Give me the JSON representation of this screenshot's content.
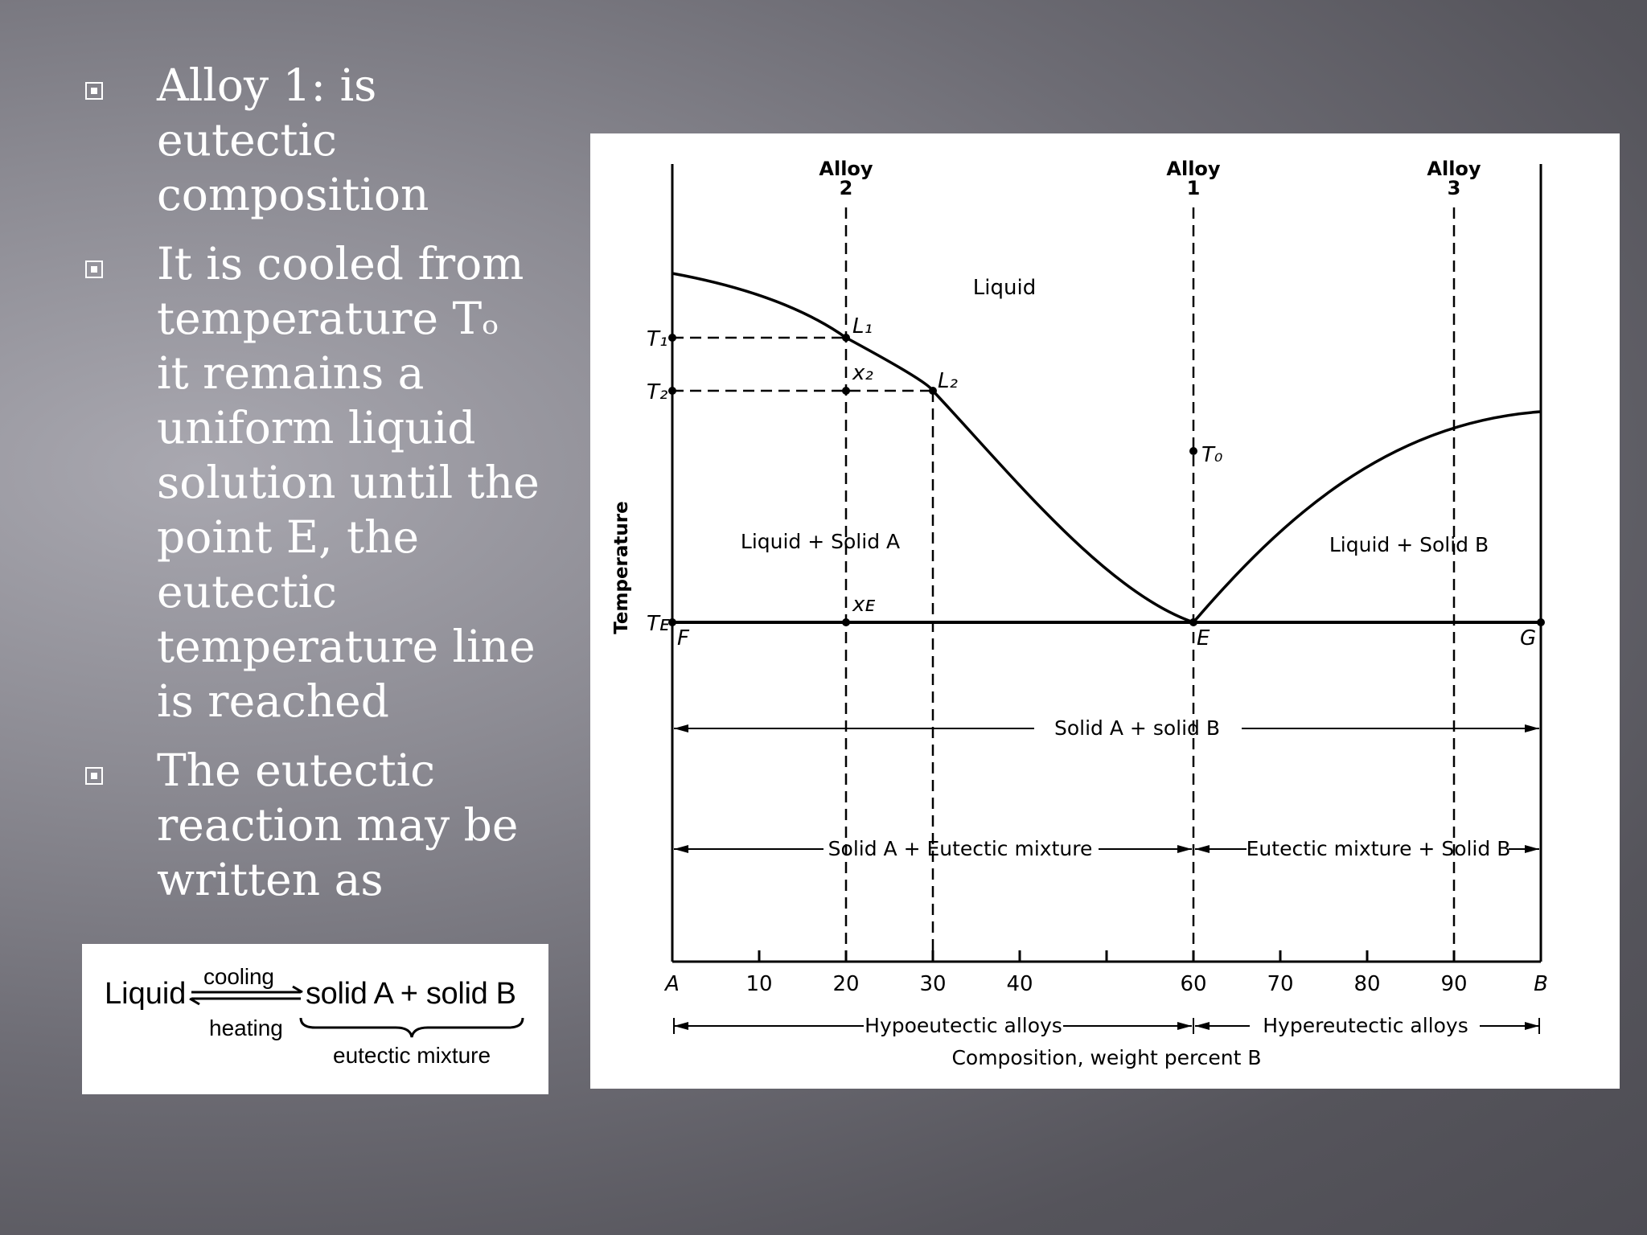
{
  "bullets": [
    {
      "text": "Alloy 1: is\neutectic\ncomposition"
    },
    {
      "text": "It is cooled from\ntemperature Tₒ\nit remains a\nuniform liquid\nsolution until the\npoint E, the\neutectic\ntemperature line\nis reached"
    },
    {
      "text": "The eutectic\nreaction may be\nwritten as"
    }
  ],
  "equation": {
    "left": "Liquid",
    "top_arrow": "cooling",
    "bottom_arrow": "heating",
    "right": "solid A + solid B",
    "brace_label": "eutectic mixture"
  },
  "diagram": {
    "ylabel": "Temperature",
    "xlabel": "Composition, weight percent B",
    "x_ticks": [
      "A",
      "10",
      "20",
      "30",
      "40",
      "60",
      "70",
      "80",
      "90",
      "B"
    ],
    "alloys": [
      {
        "line1": "Alloy",
        "line2": "2"
      },
      {
        "line1": "Alloy",
        "line2": "1"
      },
      {
        "line1": "Alloy",
        "line2": "3"
      }
    ],
    "temps": {
      "t1": "T₁",
      "t2": "T₂",
      "te": "Tᴇ",
      "t0": "T₀"
    },
    "points": {
      "l1": "L₁",
      "l2": "L₂",
      "x2": "x₂",
      "xe": "xᴇ",
      "f": "F",
      "e": "E",
      "g": "G"
    },
    "regions": {
      "liquid": "Liquid",
      "liquid_solid_a": "Liquid + Solid A",
      "liquid_solid_b": "Liquid + Solid B",
      "solid_ab": "Solid A + solid B",
      "solid_a_eutectic": "Solid A + Eutectic mixture",
      "eutectic_solid_b": "Eutectic mixture + Solid B"
    },
    "bottom_ranges": {
      "hypo": "Hypoeutectic alloys",
      "hyper": "Hypereutectic alloys"
    }
  }
}
